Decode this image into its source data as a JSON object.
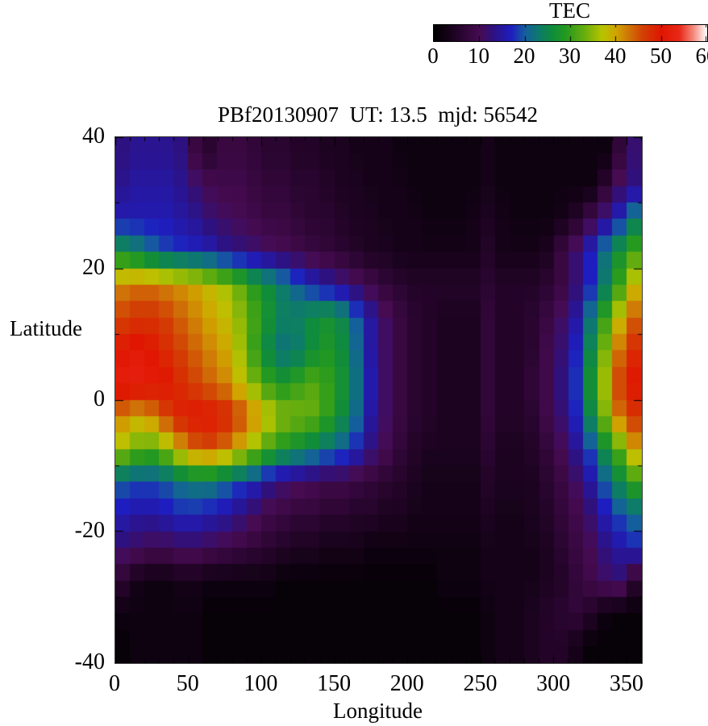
{
  "colorbar": {
    "title": "TEC",
    "min": 0,
    "max": 60,
    "tick_values": [
      0,
      10,
      20,
      30,
      40,
      50,
      60
    ],
    "tick_labels": [
      "0",
      "10",
      "20",
      "30",
      "40",
      "50",
      "60"
    ]
  },
  "plot": {
    "title": "PBf20130907  UT: 13.5  mjd: 56542",
    "xlabel": "Longitude",
    "ylabel": "Latitude",
    "x_tick_values": [
      0,
      50,
      100,
      150,
      200,
      250,
      300,
      350
    ],
    "x_tick_labels": [
      "0",
      "50",
      "100",
      "150",
      "200",
      "250",
      "300",
      "350"
    ],
    "y_tick_values": [
      40,
      20,
      0,
      -20,
      -40
    ],
    "y_tick_labels": [
      "40",
      "20",
      "0",
      "-20",
      "-40"
    ]
  },
  "chart_data": {
    "type": "heatmap",
    "title": "PBf20130907  UT: 13.5  mjd: 56542",
    "xlabel": "Longitude",
    "ylabel": "Latitude",
    "colorbar_label": "TEC",
    "xlim": [
      0,
      360
    ],
    "ylim": [
      -40,
      40
    ],
    "value_range": [
      0,
      60
    ],
    "grid": "off",
    "lon_start": 0,
    "lon_step": 10,
    "lat_start": 40,
    "lat_step": -5,
    "values_note": "TEC estimated per 10deg-lon x 5deg-lat cell, rows from lat +40..+35 down to -35..-40",
    "values": [
      [
        13,
        14,
        14,
        14,
        13,
        8,
        6,
        8,
        8,
        7,
        6,
        6,
        5,
        5,
        4,
        4,
        3,
        3,
        3,
        2,
        2,
        2,
        2,
        2,
        2,
        3,
        2,
        2,
        2,
        2,
        2,
        2,
        2,
        2,
        7,
        12
      ],
      [
        14,
        15,
        15,
        15,
        14,
        12,
        10,
        9,
        9,
        8,
        7,
        7,
        6,
        6,
        5,
        4,
        4,
        3,
        3,
        3,
        2,
        2,
        2,
        2,
        2,
        3,
        2,
        2,
        2,
        2,
        2,
        2,
        2,
        6,
        11,
        13
      ],
      [
        16,
        16,
        16,
        16,
        15,
        14,
        12,
        11,
        10,
        9,
        8,
        8,
        7,
        6,
        6,
        5,
        4,
        4,
        3,
        3,
        3,
        2,
        2,
        2,
        3,
        4,
        3,
        2,
        2,
        2,
        3,
        5,
        9,
        13,
        17,
        23
      ],
      [
        26,
        24,
        21,
        19,
        18,
        17,
        16,
        14,
        13,
        12,
        11,
        10,
        9,
        8,
        7,
        6,
        5,
        4,
        4,
        3,
        3,
        3,
        3,
        3,
        3,
        5,
        3,
        3,
        3,
        4,
        8,
        12,
        17,
        22,
        27,
        31
      ],
      [
        42,
        43,
        43,
        42,
        41,
        40,
        38,
        36,
        33,
        29,
        26,
        23,
        20,
        17,
        15,
        13,
        11,
        9,
        7,
        6,
        5,
        5,
        5,
        5,
        5,
        6,
        5,
        5,
        5,
        6,
        8,
        12,
        17,
        23,
        30,
        38
      ],
      [
        46,
        47,
        47,
        46,
        44,
        42,
        40,
        38,
        35,
        31,
        27,
        24,
        24,
        26,
        27,
        25,
        20,
        15,
        11,
        8,
        6,
        5,
        4,
        4,
        4,
        7,
        5,
        5,
        6,
        8,
        11,
        15,
        22,
        30,
        38,
        44
      ],
      [
        50,
        51,
        50,
        48,
        46,
        44,
        42,
        40,
        36,
        30,
        25,
        22,
        23,
        26,
        28,
        26,
        21,
        15,
        11,
        8,
        6,
        5,
        4,
        4,
        4,
        7,
        5,
        5,
        6,
        9,
        12,
        17,
        25,
        34,
        43,
        48
      ],
      [
        52,
        52,
        51,
        50,
        48,
        46,
        44,
        42,
        38,
        34,
        30,
        28,
        30,
        32,
        30,
        27,
        22,
        16,
        11,
        8,
        6,
        5,
        4,
        4,
        4,
        7,
        5,
        5,
        7,
        9,
        13,
        18,
        27,
        36,
        46,
        50
      ],
      [
        42,
        40,
        42,
        46,
        49,
        50,
        50,
        49,
        46,
        42,
        38,
        35,
        34,
        33,
        30,
        26,
        21,
        15,
        11,
        8,
        6,
        5,
        4,
        4,
        4,
        7,
        5,
        5,
        6,
        9,
        12,
        17,
        25,
        34,
        43,
        47
      ],
      [
        36,
        33,
        32,
        35,
        40,
        44,
        45,
        43,
        39,
        35,
        31,
        28,
        26,
        24,
        22,
        20,
        17,
        13,
        10,
        7,
        5,
        4,
        4,
        4,
        4,
        6,
        4,
        4,
        5,
        7,
        10,
        14,
        19,
        26,
        32,
        40
      ],
      [
        20,
        19,
        19,
        20,
        22,
        23,
        23,
        21,
        19,
        17,
        14,
        12,
        11,
        10,
        9,
        9,
        8,
        7,
        6,
        5,
        4,
        3,
        3,
        3,
        3,
        5,
        4,
        4,
        4,
        6,
        8,
        11,
        15,
        20,
        25,
        30
      ],
      [
        16,
        15,
        15,
        16,
        17,
        17,
        16,
        15,
        13,
        11,
        9,
        8,
        7,
        7,
        6,
        6,
        5,
        5,
        4,
        4,
        3,
        3,
        3,
        3,
        3,
        4,
        3,
        3,
        4,
        5,
        7,
        9,
        12,
        16,
        19,
        21
      ],
      [
        12,
        11,
        10,
        10,
        11,
        11,
        10,
        9,
        8,
        7,
        6,
        5,
        4,
        4,
        3,
        3,
        3,
        2,
        2,
        2,
        2,
        2,
        2,
        2,
        2,
        3,
        3,
        3,
        3,
        4,
        6,
        8,
        10,
        13,
        15,
        17
      ],
      [
        6,
        3,
        2,
        2,
        3,
        3,
        2,
        2,
        2,
        2,
        2,
        1,
        1,
        1,
        1,
        1,
        1,
        1,
        1,
        1,
        1,
        1,
        2,
        2,
        2,
        3,
        3,
        3,
        3,
        4,
        5,
        7,
        9,
        11,
        12,
        6
      ],
      [
        2,
        2,
        2,
        2,
        2,
        2,
        1,
        1,
        1,
        1,
        1,
        1,
        1,
        1,
        1,
        1,
        1,
        1,
        1,
        1,
        1,
        1,
        1,
        1,
        1,
        2,
        3,
        3,
        4,
        5,
        6,
        7,
        5,
        2,
        1,
        1
      ],
      [
        1,
        2,
        2,
        2,
        2,
        2,
        1,
        1,
        1,
        1,
        1,
        1,
        1,
        1,
        1,
        1,
        1,
        1,
        1,
        1,
        1,
        1,
        1,
        1,
        1,
        2,
        3,
        3,
        4,
        5,
        5,
        3,
        1,
        1,
        1,
        1
      ]
    ],
    "colormap": {
      "range": [
        0,
        60
      ],
      "stops": [
        [
          0,
          "#000000"
        ],
        [
          5,
          "#230428"
        ],
        [
          10,
          "#470b52"
        ],
        [
          13,
          "#2e1180"
        ],
        [
          17,
          "#1e1ec0"
        ],
        [
          20,
          "#155e9e"
        ],
        [
          23,
          "#0d7a6c"
        ],
        [
          26,
          "#0f8c3c"
        ],
        [
          29,
          "#259a1e"
        ],
        [
          33,
          "#66ad0e"
        ],
        [
          37,
          "#b9c400"
        ],
        [
          40,
          "#d0a500"
        ],
        [
          43,
          "#cf7207"
        ],
        [
          46,
          "#d23f04"
        ],
        [
          50,
          "#e01602"
        ],
        [
          54,
          "#e92918"
        ],
        [
          57,
          "#f4887b"
        ],
        [
          60,
          "#ffffff"
        ]
      ]
    }
  }
}
